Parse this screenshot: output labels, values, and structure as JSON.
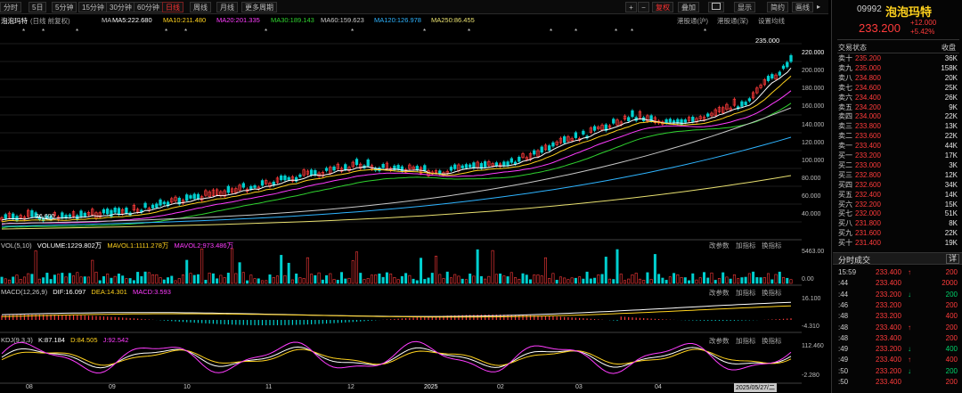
{
  "toolbar": {
    "periods": [
      "分时",
      "5日",
      "5分钟",
      "15分钟",
      "30分钟",
      "60分钟",
      "日线",
      "周线",
      "月线",
      "更多周期"
    ],
    "selected": "日线",
    "zoom_in": "+",
    "zoom_out": "−",
    "fq": "复权",
    "overlay": "叠加",
    "display": "显示",
    "brief": "简约",
    "draw": "画线",
    "more": "▸"
  },
  "chart_header": {
    "stock": "泡泡玛特",
    "type": "(日线 前复权)",
    "ma_label": "MA",
    "ma5": "MA5:222.680",
    "ma10": "MA10:211.480",
    "ma20": "MA20:201.335",
    "ma30": "MA30:189.143",
    "ma60": "MA60:159.623",
    "ma120": "MA120:126.978",
    "ma250": "MA250:86.455",
    "hk_sh": "港股通(沪)",
    "hk_sz": "港股通(深)",
    "settings": "设置均线",
    "high_label": "235.000",
    "low_label": "36.600"
  },
  "price_axis": [
    "235.000",
    "220.000",
    "200.000",
    "180.000",
    "160.000",
    "140.000",
    "120.000",
    "100.000",
    "80.000",
    "60.000",
    "40.000"
  ],
  "volume": {
    "title": "VOL(5,10)",
    "volume": "VOLUME:1229.802万",
    "mavol1": "MAVOL1:1111.278万",
    "mavol2": "MAVOL2:973.486万",
    "axis_top": "5463.00",
    "axis_bottom": "0.00",
    "controls": [
      "改参数",
      "加指标",
      "换指标"
    ]
  },
  "macd": {
    "title": "MACD(12,26,9)",
    "dif": "DIF:16.097",
    "dea": "DEA:14.301",
    "macd": "MACD:3.593",
    "axis_top": "16.100",
    "axis_bottom": "-4.310",
    "controls": [
      "改参数",
      "加指标",
      "换指标"
    ]
  },
  "kdj": {
    "title": "KDJ(9,3,3)",
    "k": "K:87.184",
    "d": "D:84.505",
    "j": "J:92.542",
    "axis_top": "112.460",
    "axis_bottom": "-2.280",
    "controls": [
      "改参数",
      "加指标",
      "换指标"
    ]
  },
  "x_axis": [
    "08",
    "09",
    "10",
    "11",
    "12",
    "2025",
    "02",
    "03",
    "04",
    "2025/05/27/二"
  ],
  "colors": {
    "ma5": "#ffffff",
    "ma10": "#ffd21e",
    "ma20": "#ff3cff",
    "ma30": "#2fd22f",
    "ma60": "#c8c8c8",
    "ma120": "#2eb4ff",
    "ma250": "#e8e070",
    "up": "#ff3b3b",
    "down": "#00d0d0"
  },
  "quote": {
    "code": "09992",
    "name": "泡泡玛特",
    "price": "233.200",
    "change": "+12.000",
    "pct": "+5.42%",
    "status_label": "交易状态",
    "status_value": "收盘"
  },
  "asks": [
    {
      "label": "卖十",
      "price": "235.200",
      "vol": "36K"
    },
    {
      "label": "卖九",
      "price": "235.000",
      "vol": "158K"
    },
    {
      "label": "卖八",
      "price": "234.800",
      "vol": "20K"
    },
    {
      "label": "卖七",
      "price": "234.600",
      "vol": "25K"
    },
    {
      "label": "卖六",
      "price": "234.400",
      "vol": "26K"
    },
    {
      "label": "卖五",
      "price": "234.200",
      "vol": "9K"
    },
    {
      "label": "卖四",
      "price": "234.000",
      "vol": "22K"
    },
    {
      "label": "卖三",
      "price": "233.800",
      "vol": "13K"
    },
    {
      "label": "卖二",
      "price": "233.600",
      "vol": "22K"
    },
    {
      "label": "卖一",
      "price": "233.400",
      "vol": "44K"
    }
  ],
  "bids": [
    {
      "label": "买一",
      "price": "233.200",
      "vol": "17K"
    },
    {
      "label": "买二",
      "price": "233.000",
      "vol": "3K"
    },
    {
      "label": "买三",
      "price": "232.800",
      "vol": "12K"
    },
    {
      "label": "买四",
      "price": "232.600",
      "vol": "34K"
    },
    {
      "label": "买五",
      "price": "232.400",
      "vol": "14K"
    },
    {
      "label": "买六",
      "price": "232.200",
      "vol": "15K"
    },
    {
      "label": "买七",
      "price": "232.000",
      "vol": "51K"
    },
    {
      "label": "买八",
      "price": "231.800",
      "vol": "8K"
    },
    {
      "label": "买九",
      "price": "231.600",
      "vol": "22K"
    },
    {
      "label": "买十",
      "price": "231.400",
      "vol": "19K"
    }
  ],
  "trades_header": {
    "title": "分时成交",
    "detail": "详"
  },
  "trades": [
    {
      "time": "15:59",
      "price": "233.400",
      "dir": "up",
      "vol": "200"
    },
    {
      "time": ":44",
      "price": "233.400",
      "dir": "",
      "vol": "2000"
    },
    {
      "time": ":44",
      "price": "233.200",
      "dir": "down",
      "vol": "200"
    },
    {
      "time": ":46",
      "price": "233.200",
      "dir": "",
      "vol": "200"
    },
    {
      "time": ":48",
      "price": "233.200",
      "dir": "",
      "vol": "400"
    },
    {
      "time": ":48",
      "price": "233.400",
      "dir": "up",
      "vol": "200"
    },
    {
      "time": ":48",
      "price": "233.400",
      "dir": "",
      "vol": "200"
    },
    {
      "time": ":49",
      "price": "233.200",
      "dir": "down",
      "vol": "400"
    },
    {
      "time": ":49",
      "price": "233.400",
      "dir": "up",
      "vol": "400"
    },
    {
      "time": ":50",
      "price": "233.200",
      "dir": "down",
      "vol": "200"
    },
    {
      "time": ":50",
      "price": "233.400",
      "dir": "",
      "vol": "200"
    }
  ]
}
